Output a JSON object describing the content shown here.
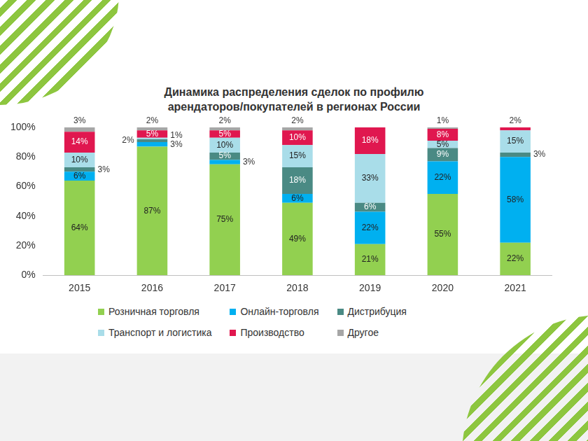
{
  "chart_data": {
    "type": "bar",
    "title": "Динамика распределения сделок по профилю арендаторов/покупателей в регионах России",
    "categories": [
      "2015",
      "2016",
      "2017",
      "2018",
      "2019",
      "2020",
      "2021"
    ],
    "stacked": true,
    "data_labels": true,
    "grid": false,
    "legend": "bottom",
    "ylim": [
      0,
      100
    ],
    "yticks": [
      {
        "value": 0,
        "label": "0%"
      },
      {
        "value": 20,
        "label": "20%"
      },
      {
        "value": 40,
        "label": "40%"
      },
      {
        "value": 60,
        "label": "60%"
      },
      {
        "value": 80,
        "label": "80%"
      },
      {
        "value": 100,
        "label": "100%"
      }
    ],
    "series": [
      {
        "name": "Розничная торговля",
        "color": "#92d050",
        "values": [
          64,
          87,
          75,
          49,
          21,
          55,
          22
        ],
        "value_labels": [
          "64%",
          "87%",
          "75%",
          "49%",
          "21%",
          "55%",
          "22%"
        ]
      },
      {
        "name": "Онлайн-торговля",
        "color": "#00b0f0",
        "values": [
          6,
          3,
          3,
          6,
          22,
          22,
          58
        ],
        "value_labels": [
          "6%",
          "3%",
          "3%",
          "6%",
          "22%",
          "22%",
          "58%"
        ]
      },
      {
        "name": "Дистрибуция",
        "color": "#4a8a84",
        "values": [
          3,
          2,
          5,
          18,
          6,
          9,
          3
        ],
        "value_labels": [
          "3%",
          "2%",
          "5%",
          "18%",
          "6%",
          "9%",
          "3%"
        ]
      },
      {
        "name": "Транспорт и логистика",
        "color": "#a9dde9",
        "values": [
          10,
          1,
          10,
          15,
          33,
          5,
          15
        ],
        "value_labels": [
          "10%",
          "1%",
          "10%",
          "15%",
          "33%",
          "5%",
          "15%"
        ]
      },
      {
        "name": "Производство",
        "color": "#e0174f",
        "values": [
          14,
          5,
          5,
          10,
          18,
          8,
          2
        ],
        "value_labels": [
          "14%",
          "5%",
          "5%",
          "10%",
          "18%",
          "8%",
          "2%"
        ]
      },
      {
        "name": "Другое",
        "color": "#a6a6a6",
        "values": [
          3,
          2,
          2,
          2,
          null,
          1,
          null
        ],
        "value_labels": [
          "3%",
          "2%",
          "2%",
          "2%",
          null,
          "1%",
          null
        ]
      }
    ]
  }
}
